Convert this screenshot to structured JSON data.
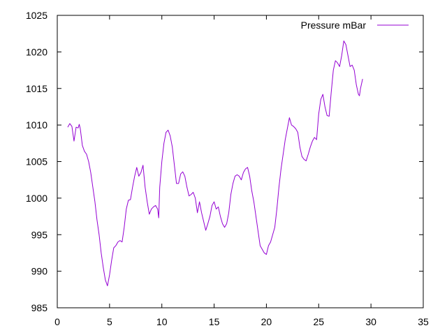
{
  "chart_data": {
    "type": "line",
    "title": "",
    "xlabel": "",
    "ylabel": "",
    "xlim": [
      0,
      35
    ],
    "ylim": [
      985,
      1025
    ],
    "xticks": [
      0,
      5,
      10,
      15,
      20,
      25,
      30,
      35
    ],
    "yticks": [
      985,
      990,
      995,
      1000,
      1005,
      1010,
      1015,
      1020,
      1025
    ],
    "grid": false,
    "legend_position": "top-right",
    "series": [
      {
        "name": "Pressure mBar",
        "color": "#9400d3",
        "points": [
          [
            1.0,
            1009.7
          ],
          [
            1.2,
            1010.2
          ],
          [
            1.4,
            1009.8
          ],
          [
            1.6,
            1007.8
          ],
          [
            1.8,
            1009.7
          ],
          [
            2.0,
            1009.6
          ],
          [
            2.1,
            1010.1
          ],
          [
            2.2,
            1009.5
          ],
          [
            2.4,
            1007.2
          ],
          [
            2.6,
            1006.4
          ],
          [
            2.8,
            1006.0
          ],
          [
            3.0,
            1005.0
          ],
          [
            3.2,
            1003.5
          ],
          [
            3.4,
            1001.5
          ],
          [
            3.6,
            999.5
          ],
          [
            3.8,
            997.0
          ],
          [
            4.0,
            995.0
          ],
          [
            4.2,
            992.5
          ],
          [
            4.4,
            990.5
          ],
          [
            4.6,
            988.8
          ],
          [
            4.8,
            988.0
          ],
          [
            5.0,
            989.5
          ],
          [
            5.2,
            991.5
          ],
          [
            5.4,
            993.2
          ],
          [
            5.6,
            993.5
          ],
          [
            5.8,
            994.0
          ],
          [
            6.0,
            994.2
          ],
          [
            6.2,
            994.0
          ],
          [
            6.4,
            996.0
          ],
          [
            6.6,
            998.5
          ],
          [
            6.8,
            999.7
          ],
          [
            7.0,
            999.8
          ],
          [
            7.2,
            1001.5
          ],
          [
            7.4,
            1003.0
          ],
          [
            7.6,
            1004.2
          ],
          [
            7.8,
            1003.0
          ],
          [
            8.0,
            1003.5
          ],
          [
            8.2,
            1004.5
          ],
          [
            8.4,
            1001.5
          ],
          [
            8.6,
            999.5
          ],
          [
            8.8,
            997.8
          ],
          [
            9.0,
            998.5
          ],
          [
            9.2,
            998.8
          ],
          [
            9.4,
            999.0
          ],
          [
            9.6,
            998.5
          ],
          [
            9.7,
            997.3
          ],
          [
            9.8,
            1001.5
          ],
          [
            10.0,
            1005.0
          ],
          [
            10.2,
            1007.5
          ],
          [
            10.4,
            1009.0
          ],
          [
            10.6,
            1009.3
          ],
          [
            10.8,
            1008.5
          ],
          [
            11.0,
            1007.0
          ],
          [
            11.2,
            1004.5
          ],
          [
            11.4,
            1002.0
          ],
          [
            11.6,
            1002.0
          ],
          [
            11.8,
            1003.3
          ],
          [
            12.0,
            1003.6
          ],
          [
            12.2,
            1003.0
          ],
          [
            12.4,
            1001.5
          ],
          [
            12.6,
            1000.3
          ],
          [
            12.8,
            1000.5
          ],
          [
            13.0,
            1000.8
          ],
          [
            13.2,
            1000.0
          ],
          [
            13.4,
            998.0
          ],
          [
            13.6,
            999.5
          ],
          [
            13.8,
            998.0
          ],
          [
            14.0,
            996.8
          ],
          [
            14.2,
            995.6
          ],
          [
            14.4,
            996.5
          ],
          [
            14.6,
            997.5
          ],
          [
            14.8,
            999.0
          ],
          [
            15.0,
            999.5
          ],
          [
            15.2,
            998.5
          ],
          [
            15.4,
            998.8
          ],
          [
            15.6,
            997.5
          ],
          [
            15.8,
            996.5
          ],
          [
            16.0,
            996.0
          ],
          [
            16.2,
            996.5
          ],
          [
            16.4,
            998.0
          ],
          [
            16.6,
            1000.5
          ],
          [
            16.8,
            1002.0
          ],
          [
            17.0,
            1003.0
          ],
          [
            17.2,
            1003.2
          ],
          [
            17.4,
            1003.0
          ],
          [
            17.6,
            1002.5
          ],
          [
            17.8,
            1003.5
          ],
          [
            18.0,
            1004.0
          ],
          [
            18.2,
            1004.2
          ],
          [
            18.4,
            1003.0
          ],
          [
            18.6,
            1001.0
          ],
          [
            18.8,
            999.5
          ],
          [
            19.0,
            997.5
          ],
          [
            19.2,
            995.5
          ],
          [
            19.4,
            993.5
          ],
          [
            19.6,
            993.0
          ],
          [
            19.8,
            992.5
          ],
          [
            20.0,
            992.3
          ],
          [
            20.2,
            993.5
          ],
          [
            20.4,
            994.0
          ],
          [
            20.6,
            995.0
          ],
          [
            20.8,
            996.0
          ],
          [
            21.0,
            998.5
          ],
          [
            21.2,
            1001.5
          ],
          [
            21.4,
            1004.0
          ],
          [
            21.6,
            1006.0
          ],
          [
            21.8,
            1008.0
          ],
          [
            22.0,
            1009.5
          ],
          [
            22.2,
            1011.0
          ],
          [
            22.4,
            1010.0
          ],
          [
            22.6,
            1009.8
          ],
          [
            22.8,
            1009.5
          ],
          [
            23.0,
            1009.0
          ],
          [
            23.2,
            1007.0
          ],
          [
            23.4,
            1005.7
          ],
          [
            23.6,
            1005.3
          ],
          [
            23.8,
            1005.1
          ],
          [
            24.0,
            1006.0
          ],
          [
            24.2,
            1007.0
          ],
          [
            24.4,
            1007.8
          ],
          [
            24.6,
            1008.3
          ],
          [
            24.8,
            1008.0
          ],
          [
            25.0,
            1011.5
          ],
          [
            25.2,
            1013.5
          ],
          [
            25.4,
            1014.2
          ],
          [
            25.6,
            1012.5
          ],
          [
            25.8,
            1011.3
          ],
          [
            26.0,
            1011.2
          ],
          [
            26.2,
            1014.5
          ],
          [
            26.4,
            1017.5
          ],
          [
            26.6,
            1018.8
          ],
          [
            26.8,
            1018.5
          ],
          [
            27.0,
            1018.0
          ],
          [
            27.2,
            1019.5
          ],
          [
            27.4,
            1021.5
          ],
          [
            27.6,
            1021.0
          ],
          [
            27.8,
            1019.5
          ],
          [
            28.0,
            1018.0
          ],
          [
            28.2,
            1018.2
          ],
          [
            28.4,
            1017.5
          ],
          [
            28.6,
            1015.5
          ],
          [
            28.8,
            1014.2
          ],
          [
            28.9,
            1014.0
          ],
          [
            29.0,
            1015.0
          ],
          [
            29.2,
            1016.3
          ]
        ]
      }
    ]
  }
}
